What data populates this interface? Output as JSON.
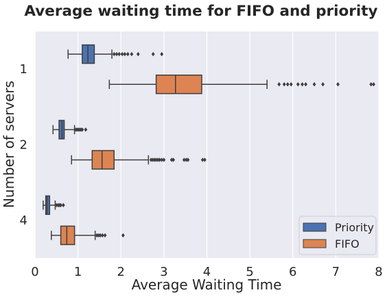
{
  "chart_data": {
    "type": "box",
    "orientation": "horizontal",
    "title": "Average waiting time for FIFO and priority",
    "xlabel": "Average Waiting Time",
    "ylabel": "Number of servers",
    "xlim": [
      0,
      8
    ],
    "xticks": [
      "0",
      "1",
      "2",
      "3",
      "4",
      "5",
      "6",
      "7",
      "8"
    ],
    "categories": [
      "1",
      "2",
      "4"
    ],
    "grid": true,
    "legend": {
      "placement": "bottom-right",
      "entries": [
        {
          "name": "Priority",
          "color": "#4c72b0"
        },
        {
          "name": "FIFO",
          "color": "#dd8452"
        }
      ]
    },
    "series": [
      {
        "name": "Priority",
        "color": "#4c72b0",
        "boxes": [
          {
            "category": "1",
            "whisker_low": 0.77,
            "q1": 1.1,
            "median": 1.23,
            "q3": 1.38,
            "whisker_high": 1.79,
            "outliers": [
              1.84,
              1.9,
              1.96,
              2.03,
              2.09,
              2.16,
              2.25,
              2.4,
              2.75,
              2.95
            ]
          },
          {
            "category": "2",
            "whisker_low": 0.42,
            "q1": 0.56,
            "median": 0.63,
            "q3": 0.68,
            "whisker_high": 0.92,
            "outliers": [
              0.95,
              0.98,
              1.01,
              1.04,
              1.07,
              1.1,
              1.18
            ]
          },
          {
            "category": "4",
            "whisker_low": 0.19,
            "q1": 0.25,
            "median": 0.28,
            "q3": 0.34,
            "whisker_high": 0.47,
            "outliers": [
              0.5,
              0.54,
              0.57,
              0.6,
              0.66
            ]
          }
        ]
      },
      {
        "name": "FIFO",
        "color": "#dd8452",
        "boxes": [
          {
            "category": "1",
            "whisker_low": 1.73,
            "q1": 2.82,
            "median": 3.27,
            "q3": 3.88,
            "whisker_high": 5.4,
            "outliers": [
              5.68,
              5.8,
              5.88,
              5.96,
              6.12,
              6.22,
              6.3,
              6.5,
              6.7,
              7.05,
              7.82,
              7.88
            ]
          },
          {
            "category": "2",
            "whisker_low": 0.85,
            "q1": 1.33,
            "median": 1.56,
            "q3": 1.84,
            "whisker_high": 2.64,
            "outliers": [
              2.7,
              2.74,
              2.78,
              2.82,
              2.86,
              2.9,
              2.95,
              3.0,
              3.18,
              3.22,
              3.47,
              3.52,
              3.56,
              3.9,
              3.95
            ]
          },
          {
            "category": "4",
            "whisker_low": 0.38,
            "q1": 0.6,
            "median": 0.74,
            "q3": 0.92,
            "whisker_high": 1.4,
            "outliers": [
              1.44,
              1.48,
              1.52,
              1.57,
              1.63,
              2.05
            ]
          }
        ]
      }
    ]
  }
}
